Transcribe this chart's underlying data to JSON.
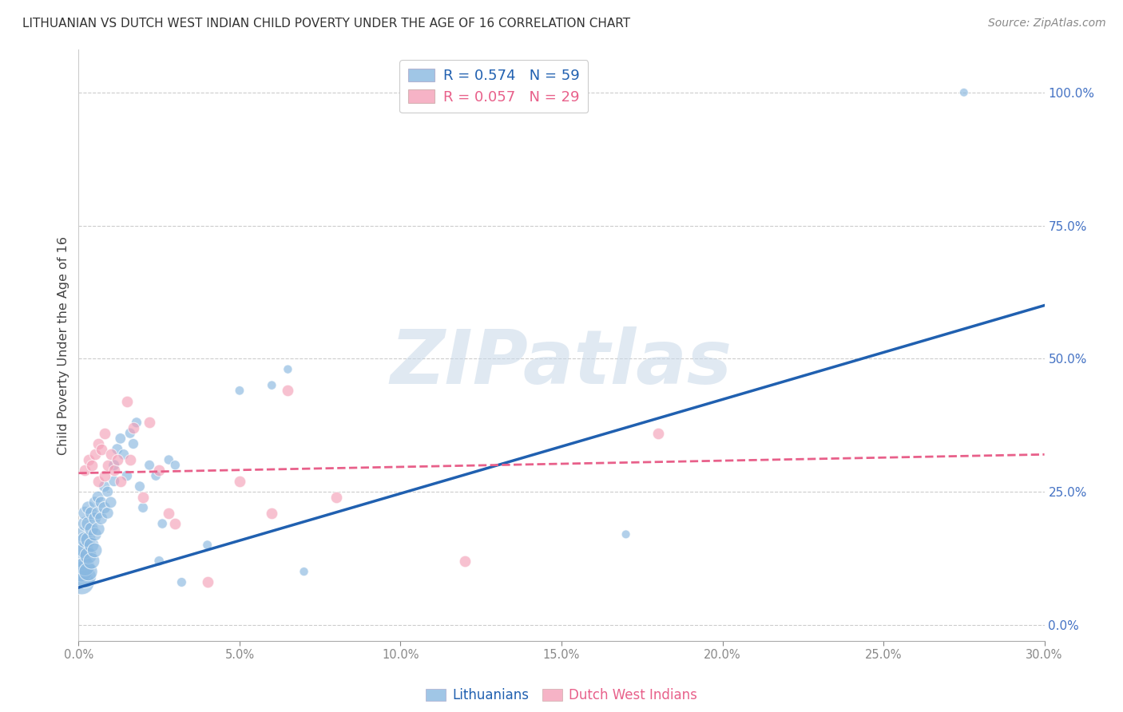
{
  "title": "LITHUANIAN VS DUTCH WEST INDIAN CHILD POVERTY UNDER THE AGE OF 16 CORRELATION CHART",
  "source": "Source: ZipAtlas.com",
  "ylabel": "Child Poverty Under the Age of 16",
  "watermark": "ZIPatlas",
  "blue_label": "Lithuanians",
  "pink_label": "Dutch West Indians",
  "blue_R": "0.574",
  "blue_N": "59",
  "pink_R": "0.057",
  "pink_N": "29",
  "blue_color": "#89b8e0",
  "pink_color": "#f4a0b8",
  "blue_line_color": "#2060b0",
  "pink_line_color": "#e8608a",
  "background_color": "#ffffff",
  "grid_color": "#cccccc",
  "title_color": "#333333",
  "tick_color": "#4472c4",
  "source_color": "#888888",
  "ylabel_color": "#444444",
  "right_yticks": [
    0.0,
    0.25,
    0.5,
    0.75,
    1.0
  ],
  "right_yticklabels": [
    "0.0%",
    "25.0%",
    "50.0%",
    "75.0%",
    "100.0%"
  ],
  "xlim": [
    0.0,
    0.3
  ],
  "ylim": [
    -0.03,
    1.08
  ],
  "blue_line_x": [
    0.0,
    0.3
  ],
  "blue_line_y": [
    0.07,
    0.6
  ],
  "pink_line_x": [
    0.0,
    0.3
  ],
  "pink_line_y": [
    0.285,
    0.32
  ],
  "blue_scatter_x": [
    0.001,
    0.001,
    0.001,
    0.001,
    0.001,
    0.002,
    0.002,
    0.002,
    0.002,
    0.002,
    0.002,
    0.003,
    0.003,
    0.003,
    0.003,
    0.003,
    0.004,
    0.004,
    0.004,
    0.004,
    0.005,
    0.005,
    0.005,
    0.005,
    0.006,
    0.006,
    0.006,
    0.007,
    0.007,
    0.008,
    0.008,
    0.009,
    0.009,
    0.01,
    0.011,
    0.011,
    0.012,
    0.013,
    0.014,
    0.015,
    0.016,
    0.017,
    0.018,
    0.019,
    0.02,
    0.022,
    0.024,
    0.025,
    0.026,
    0.028,
    0.03,
    0.032,
    0.04,
    0.05,
    0.06,
    0.065,
    0.07,
    0.17,
    0.275
  ],
  "blue_scatter_y": [
    0.08,
    0.1,
    0.12,
    0.14,
    0.17,
    0.09,
    0.11,
    0.14,
    0.16,
    0.19,
    0.21,
    0.1,
    0.13,
    0.16,
    0.19,
    0.22,
    0.12,
    0.15,
    0.18,
    0.21,
    0.14,
    0.17,
    0.2,
    0.23,
    0.18,
    0.21,
    0.24,
    0.2,
    0.23,
    0.22,
    0.26,
    0.21,
    0.25,
    0.23,
    0.27,
    0.3,
    0.33,
    0.35,
    0.32,
    0.28,
    0.36,
    0.34,
    0.38,
    0.26,
    0.22,
    0.3,
    0.28,
    0.12,
    0.19,
    0.31,
    0.3,
    0.08,
    0.15,
    0.44,
    0.45,
    0.48,
    0.1,
    0.17,
    1.0
  ],
  "blue_scatter_sizes": [
    500,
    350,
    280,
    230,
    180,
    400,
    300,
    240,
    200,
    170,
    150,
    280,
    230,
    190,
    160,
    140,
    220,
    180,
    155,
    135,
    180,
    150,
    130,
    115,
    150,
    130,
    115,
    130,
    115,
    120,
    105,
    115,
    100,
    110,
    100,
    100,
    100,
    95,
    95,
    95,
    90,
    90,
    88,
    88,
    85,
    85,
    82,
    80,
    80,
    78,
    78,
    75,
    72,
    70,
    68,
    65,
    65,
    62,
    60
  ],
  "pink_scatter_x": [
    0.002,
    0.003,
    0.004,
    0.005,
    0.006,
    0.006,
    0.007,
    0.008,
    0.008,
    0.009,
    0.01,
    0.011,
    0.012,
    0.013,
    0.015,
    0.016,
    0.017,
    0.02,
    0.022,
    0.025,
    0.028,
    0.03,
    0.04,
    0.05,
    0.06,
    0.065,
    0.08,
    0.12,
    0.18
  ],
  "pink_scatter_y": [
    0.29,
    0.31,
    0.3,
    0.32,
    0.27,
    0.34,
    0.33,
    0.28,
    0.36,
    0.3,
    0.32,
    0.29,
    0.31,
    0.27,
    0.42,
    0.31,
    0.37,
    0.24,
    0.38,
    0.29,
    0.21,
    0.19,
    0.08,
    0.27,
    0.21,
    0.44,
    0.24,
    0.12,
    0.36
  ],
  "figsize": [
    14.06,
    8.92
  ],
  "dpi": 100
}
